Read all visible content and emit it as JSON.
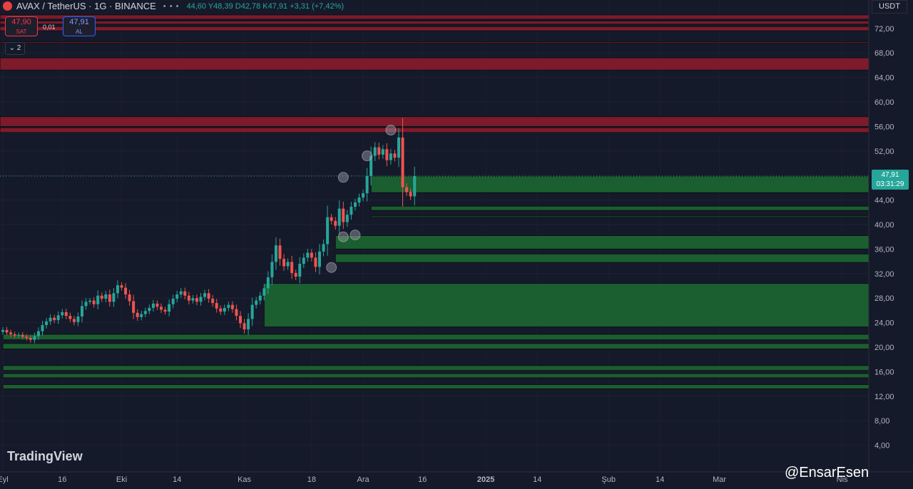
{
  "header": {
    "symbol": "AVAX / TetherUS · 1G · BINANCE",
    "ohlc": "44,60 Y48,39 D42,78 K47,91 +3,31 (+7,42%)",
    "menu_dots": "• • •"
  },
  "trade": {
    "sell_price": "47,90",
    "sell_label": "SAT",
    "spread": "0,01",
    "buy_price": "47,91",
    "buy_label": "AL"
  },
  "indicators_toggle": "⌄ 2",
  "currency": "USDT",
  "current_price": {
    "price": "47,91",
    "countdown": "03:31:29"
  },
  "branding": {
    "logo": "TradingView",
    "watermark": "@EnsarEsen"
  },
  "colors": {
    "background": "#151a2a",
    "up": "#26a69a",
    "down": "#ef5350",
    "resistance_zone": "#7d1b2b",
    "support_zone": "#1b5e2f"
  },
  "chart_data": {
    "type": "candlestick",
    "y_ticks": [
      "4,00",
      "8,00",
      "12,00",
      "16,00",
      "20,00",
      "24,00",
      "28,00",
      "32,00",
      "36,00",
      "40,00",
      "44,00",
      "48,00",
      "52,00",
      "56,00",
      "60,00",
      "64,00",
      "68,00",
      "72,00"
    ],
    "ylim": [
      2,
      75
    ],
    "x_ticks": [
      {
        "label": "Eyl",
        "i": 0
      },
      {
        "label": "16",
        "i": 15
      },
      {
        "label": "Eki",
        "i": 30
      },
      {
        "label": "14",
        "i": 44
      },
      {
        "label": "Kas",
        "i": 61
      },
      {
        "label": "18",
        "i": 78
      },
      {
        "label": "Ara",
        "i": 91
      },
      {
        "label": "16",
        "i": 106
      },
      {
        "label": "2025",
        "i": 122
      },
      {
        "label": "14",
        "i": 135
      },
      {
        "label": "Şub",
        "i": 153
      },
      {
        "label": "14",
        "i": 166
      },
      {
        "label": "Mar",
        "i": 181
      },
      {
        "label": "Nis",
        "i": 212
      }
    ],
    "closes": [
      22.8,
      22.4,
      22.1,
      21.9,
      22.0,
      21.7,
      21.5,
      21.2,
      21.8,
      22.6,
      23.6,
      24.2,
      24.8,
      24.4,
      25.2,
      25.7,
      25.1,
      24.6,
      24.1,
      25.0,
      26.7,
      27.4,
      27.6,
      27.0,
      28.4,
      27.9,
      28.6,
      27.4,
      28.8,
      30.1,
      29.7,
      28.6,
      27.5,
      25.6,
      24.9,
      25.4,
      25.9,
      26.4,
      27.1,
      26.6,
      26.1,
      25.8,
      27.0,
      27.9,
      28.6,
      29.1,
      28.4,
      27.6,
      28.0,
      27.4,
      28.2,
      28.8,
      27.9,
      27.2,
      26.3,
      25.8,
      26.4,
      26.9,
      26.2,
      25.1,
      23.9,
      22.9,
      24.6,
      26.9,
      27.6,
      28.4,
      29.6,
      31.4,
      33.9,
      36.6,
      34.4,
      33.2,
      33.9,
      32.1,
      31.5,
      33.6,
      34.6,
      35.4,
      34.6,
      33.1,
      35.6,
      36.8,
      41.2,
      40.6,
      39.8,
      42.6,
      40.4,
      41.6,
      42.9,
      43.6,
      44.4,
      45.1,
      47.9,
      51.2,
      52.6,
      51.4,
      52.3,
      50.5,
      51.6,
      50.9,
      54.2,
      46.1,
      45.3,
      44.6,
      47.91
    ],
    "zones_resistance": [
      [
        73.5,
        74.2
      ],
      [
        72.7,
        73.2
      ],
      [
        71.6,
        72.3
      ],
      [
        69.6,
        69.8
      ],
      [
        65.2,
        67.2
      ],
      [
        56.0,
        57.6
      ],
      [
        55.0,
        55.8
      ]
    ],
    "zones_support": [
      [
        45.2,
        47.9
      ],
      [
        42.3,
        43.0
      ],
      [
        41.3,
        41.4
      ],
      [
        36.0,
        38.2
      ],
      [
        33.8,
        35.2
      ],
      [
        23.3,
        30.4
      ],
      [
        21.2,
        22.1
      ],
      [
        19.7,
        20.6
      ],
      [
        16.2,
        17.0
      ],
      [
        15.0,
        15.7
      ],
      [
        13.2,
        13.9
      ]
    ],
    "pivot_markers": [
      {
        "i": 98,
        "price": 55.4
      },
      {
        "i": 92,
        "price": 51.2
      },
      {
        "i": 86,
        "price": 47.7
      },
      {
        "i": 86,
        "price": 38.0
      },
      {
        "i": 89,
        "price": 38.3
      },
      {
        "i": 83,
        "price": 33.0
      }
    ]
  }
}
